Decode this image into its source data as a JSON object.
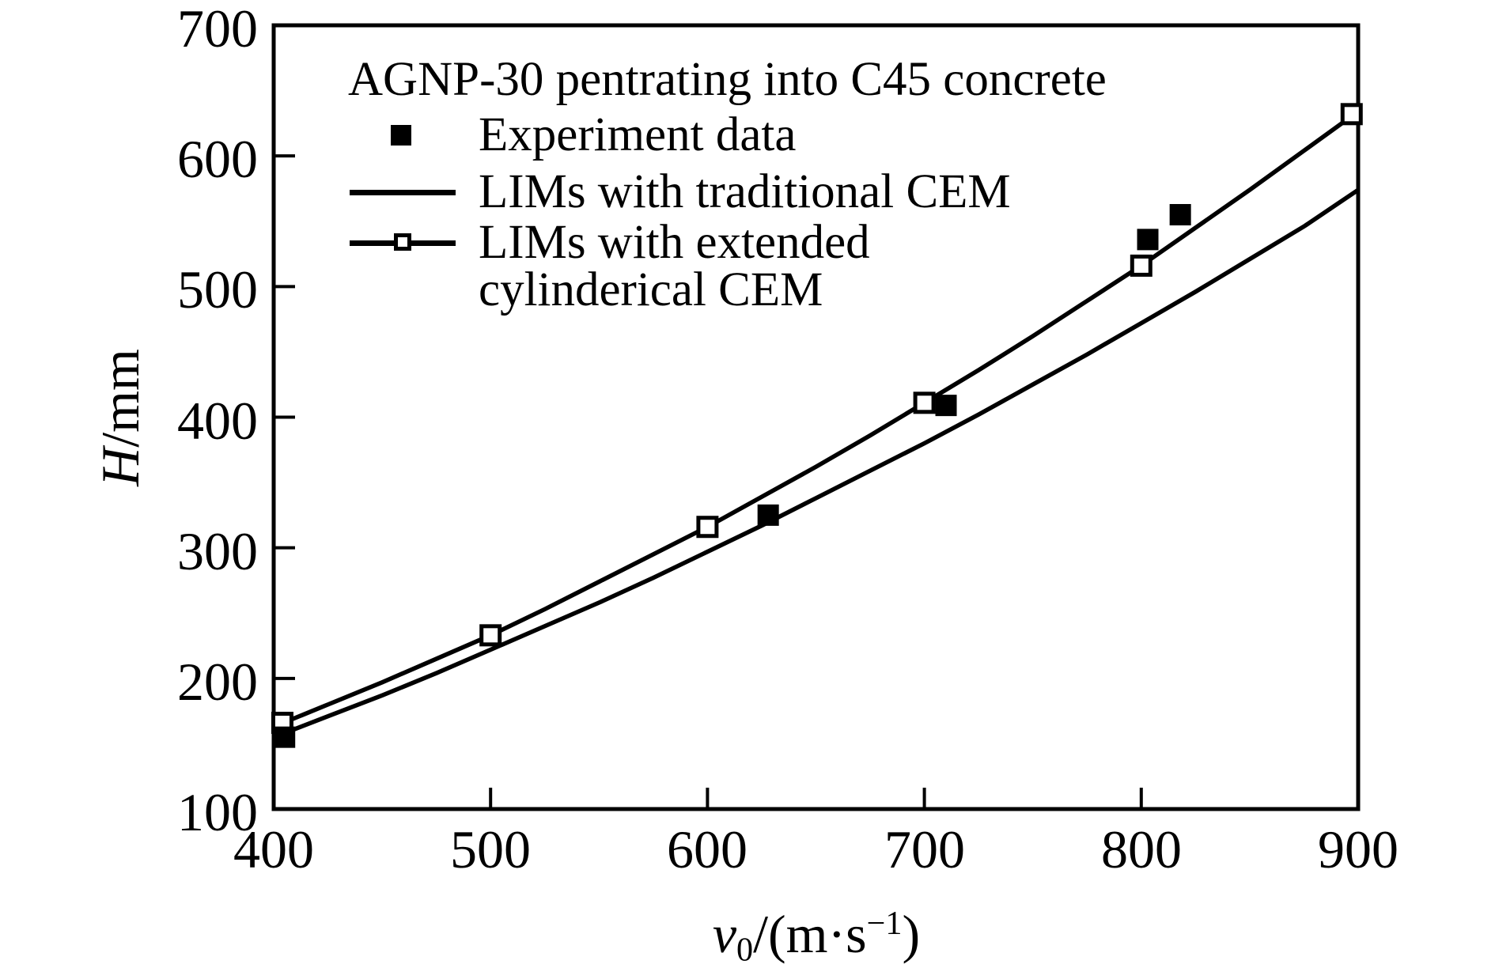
{
  "figure": {
    "background": "#ffffff",
    "ink": "#000000"
  },
  "chart_data": {
    "type": "line",
    "title": "AGNP-30 pentrating into C45 concrete",
    "xlabel_var": "v",
    "xlabel_sub": "0",
    "xlabel_unit": "/(m·s",
    "xlabel_sup": "−1",
    "xlabel_end": ")",
    "ylabel_var": "H",
    "ylabel_unit": "/mm",
    "xlim": [
      400,
      900
    ],
    "ylim": [
      100,
      700
    ],
    "xticks": [
      400,
      500,
      600,
      700,
      800,
      900
    ],
    "yticks": [
      700,
      600,
      500,
      400,
      300,
      200,
      100
    ],
    "grid": false,
    "legend_position": "top-left-inside",
    "legend": [
      {
        "label": "Experiment data",
        "marker": "filled-square"
      },
      {
        "label": "LIMs with traditional CEM",
        "marker": "solid-line"
      },
      {
        "label": "LIMs with extended",
        "label2": "cylinderical CEM",
        "marker": "solid-line-open-square"
      }
    ],
    "series": [
      {
        "name": "LIMs with traditional CEM",
        "type": "line",
        "x": [
          400,
          425,
          450,
          475,
          500,
          525,
          550,
          575,
          600,
          625,
          650,
          675,
          700,
          725,
          750,
          775,
          800,
          825,
          850,
          875,
          900
        ],
        "y": [
          155,
          171,
          187,
          204,
          222,
          240,
          258,
          277,
          297,
          317,
          338,
          359,
          380,
          402,
          425,
          448,
          472,
          496,
          521,
          546,
          574
        ]
      },
      {
        "name": "LIMs with extended cylinderical CEM",
        "type": "line",
        "marker": "open-square",
        "x": [
          400,
          425,
          450,
          475,
          500,
          525,
          550,
          575,
          600,
          625,
          650,
          675,
          700,
          725,
          750,
          775,
          800,
          825,
          850,
          875,
          900
        ],
        "y": [
          163,
          180,
          197,
          215,
          233,
          253,
          274,
          295,
          316,
          339,
          362,
          386,
          411,
          436,
          462,
          489,
          516,
          545,
          574,
          604,
          634
        ],
        "marker_x": [
          404,
          500,
          600,
          700,
          800,
          897
        ],
        "marker_y": [
          166,
          233,
          316,
          411,
          516,
          632
        ]
      },
      {
        "name": "Experiment data",
        "type": "scatter",
        "marker": "filled-square",
        "x": [
          405,
          628,
          710,
          803,
          818
        ],
        "y": [
          155,
          325,
          409,
          536,
          555
        ]
      }
    ]
  }
}
